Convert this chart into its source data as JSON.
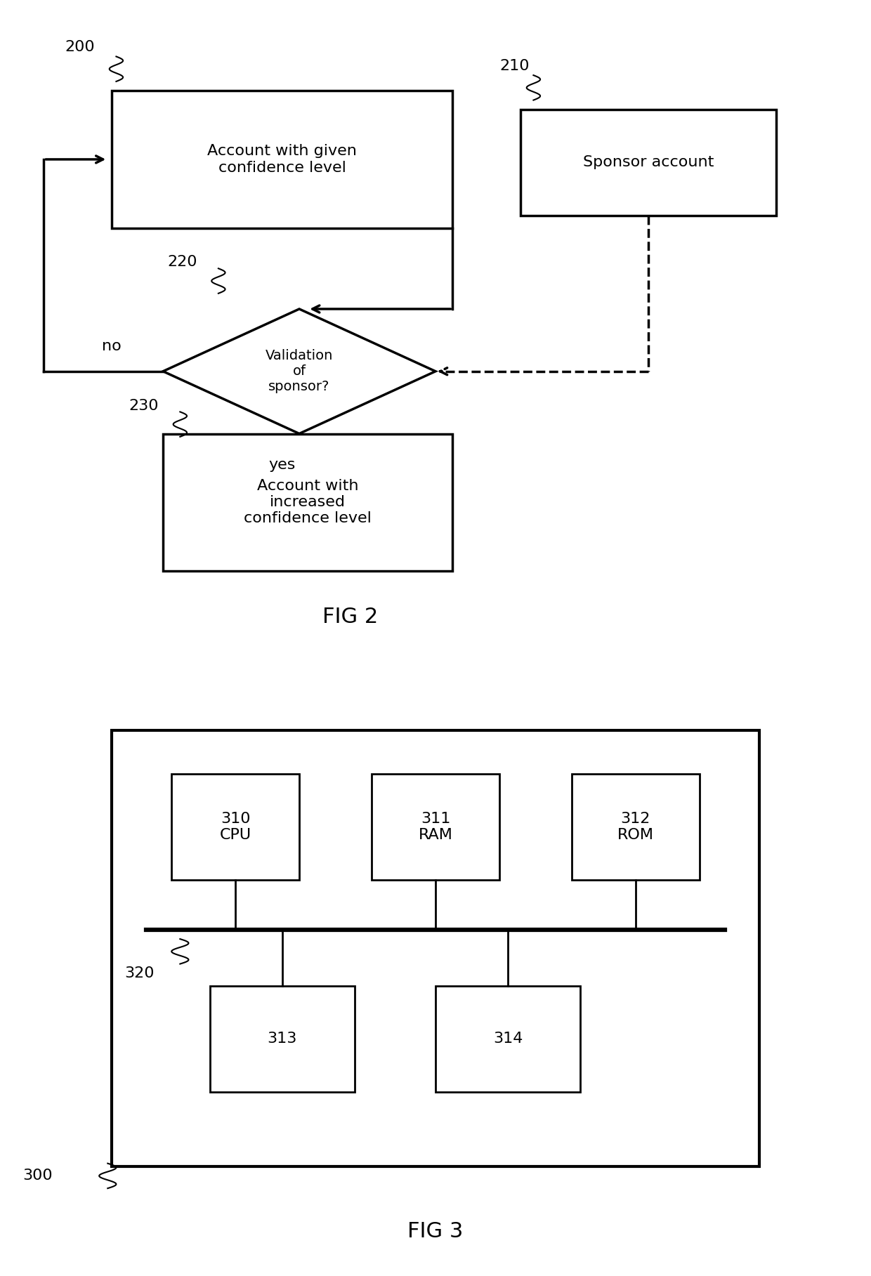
{
  "bg_color": "#ffffff",
  "line_color": "#000000",
  "fig2_title": "FIG 2",
  "fig3_title": "FIG 3",
  "text_fontsize": 16,
  "label_fontsize": 14,
  "ref_fontsize": 16,
  "title_fontsize": 22,
  "box200_label": "Account with given\nconfidence level",
  "box200_ref": "200",
  "box210_label": "Sponsor account",
  "box210_ref": "210",
  "diamond220_label": "Validation\nof\nsponsor?",
  "diamond220_ref": "220",
  "box230_label": "Account with\nincreased\nconfidence level",
  "box230_ref": "230",
  "label_no": "no",
  "label_yes": "yes",
  "cpu_label": "310\nCPU",
  "ram_label": "311\nRAM",
  "rom_label": "312\nROM",
  "b313_label": "313",
  "b314_label": "314",
  "ref300": "300",
  "ref320": "320"
}
